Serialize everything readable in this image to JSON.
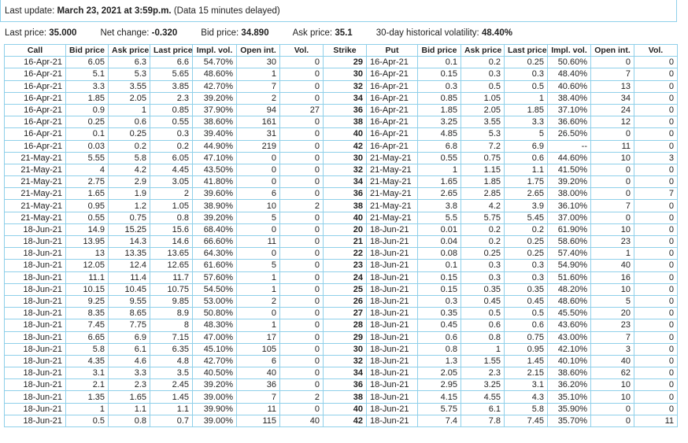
{
  "header": {
    "label": "Last update:",
    "timestamp": "March 23, 2021 at 3:59p.m.",
    "note": "(Data 15 minutes delayed)"
  },
  "quote": [
    {
      "label": "Last price:",
      "value": "35.000"
    },
    {
      "label": "Net change:",
      "value": "-0.320"
    },
    {
      "label": "Bid price:",
      "value": "34.890"
    },
    {
      "label": "Ask price:",
      "value": "35.1"
    },
    {
      "label": "30-day historical volatility:",
      "value": "48.40%"
    }
  ],
  "table": {
    "columns": [
      "Call",
      "Bid price",
      "Ask price",
      "Last price",
      "Impl. vol.",
      "Open int.",
      "Vol.",
      "Strike",
      "Put",
      "Bid price",
      "Ask price",
      "Last price",
      "Impl. vol.",
      "Open int.",
      "Vol."
    ],
    "rows": [
      [
        "16-Apr-21",
        "6.05",
        "6.3",
        "6.6",
        "54.70%",
        "30",
        "0",
        "29",
        "16-Apr-21",
        "0.1",
        "0.2",
        "0.25",
        "50.60%",
        "0",
        "0"
      ],
      [
        "16-Apr-21",
        "5.1",
        "5.3",
        "5.65",
        "48.60%",
        "1",
        "0",
        "30",
        "16-Apr-21",
        "0.15",
        "0.3",
        "0.3",
        "48.40%",
        "7",
        "0"
      ],
      [
        "16-Apr-21",
        "3.3",
        "3.55",
        "3.85",
        "42.70%",
        "7",
        "0",
        "32",
        "16-Apr-21",
        "0.3",
        "0.5",
        "0.5",
        "40.60%",
        "13",
        "0"
      ],
      [
        "16-Apr-21",
        "1.85",
        "2.05",
        "2.3",
        "39.20%",
        "2",
        "0",
        "34",
        "16-Apr-21",
        "0.85",
        "1.05",
        "1",
        "38.40%",
        "34",
        "0"
      ],
      [
        "16-Apr-21",
        "0.9",
        "1",
        "0.85",
        "37.90%",
        "94",
        "27",
        "36",
        "16-Apr-21",
        "1.85",
        "2.05",
        "1.85",
        "37.10%",
        "24",
        "0"
      ],
      [
        "16-Apr-21",
        "0.25",
        "0.6",
        "0.55",
        "38.60%",
        "161",
        "0",
        "38",
        "16-Apr-21",
        "3.25",
        "3.55",
        "3.3",
        "36.60%",
        "12",
        "0"
      ],
      [
        "16-Apr-21",
        "0.1",
        "0.25",
        "0.3",
        "39.40%",
        "31",
        "0",
        "40",
        "16-Apr-21",
        "4.85",
        "5.3",
        "5",
        "26.50%",
        "0",
        "0"
      ],
      [
        "16-Apr-21",
        "0.03",
        "0.2",
        "0.2",
        "44.90%",
        "219",
        "0",
        "42",
        "16-Apr-21",
        "6.8",
        "7.2",
        "6.9",
        "--",
        "11",
        "0"
      ],
      [
        "21-May-21",
        "5.55",
        "5.8",
        "6.05",
        "47.10%",
        "0",
        "0",
        "30",
        "21-May-21",
        "0.55",
        "0.75",
        "0.6",
        "44.60%",
        "10",
        "3"
      ],
      [
        "21-May-21",
        "4",
        "4.2",
        "4.45",
        "43.50%",
        "0",
        "0",
        "32",
        "21-May-21",
        "1",
        "1.15",
        "1.1",
        "41.50%",
        "0",
        "0"
      ],
      [
        "21-May-21",
        "2.75",
        "2.9",
        "3.05",
        "41.80%",
        "0",
        "0",
        "34",
        "21-May-21",
        "1.65",
        "1.85",
        "1.75",
        "39.20%",
        "0",
        "0"
      ],
      [
        "21-May-21",
        "1.65",
        "1.9",
        "2",
        "39.60%",
        "6",
        "0",
        "36",
        "21-May-21",
        "2.65",
        "2.85",
        "2.65",
        "38.00%",
        "0",
        "7"
      ],
      [
        "21-May-21",
        "0.95",
        "1.2",
        "1.05",
        "38.90%",
        "10",
        "2",
        "38",
        "21-May-21",
        "3.8",
        "4.2",
        "3.9",
        "36.10%",
        "7",
        "0"
      ],
      [
        "21-May-21",
        "0.55",
        "0.75",
        "0.8",
        "39.20%",
        "5",
        "0",
        "40",
        "21-May-21",
        "5.5",
        "5.75",
        "5.45",
        "37.00%",
        "0",
        "0"
      ],
      [
        "18-Jun-21",
        "14.9",
        "15.25",
        "15.6",
        "68.40%",
        "0",
        "0",
        "20",
        "18-Jun-21",
        "0.01",
        "0.2",
        "0.2",
        "61.90%",
        "10",
        "0"
      ],
      [
        "18-Jun-21",
        "13.95",
        "14.3",
        "14.6",
        "66.60%",
        "11",
        "0",
        "21",
        "18-Jun-21",
        "0.04",
        "0.2",
        "0.25",
        "58.60%",
        "23",
        "0"
      ],
      [
        "18-Jun-21",
        "13",
        "13.35",
        "13.65",
        "64.30%",
        "0",
        "0",
        "22",
        "18-Jun-21",
        "0.08",
        "0.25",
        "0.25",
        "57.40%",
        "1",
        "0"
      ],
      [
        "18-Jun-21",
        "12.05",
        "12.4",
        "12.65",
        "61.60%",
        "5",
        "0",
        "23",
        "18-Jun-21",
        "0.1",
        "0.3",
        "0.3",
        "54.90%",
        "40",
        "0"
      ],
      [
        "18-Jun-21",
        "11.1",
        "11.4",
        "11.7",
        "57.60%",
        "1",
        "0",
        "24",
        "18-Jun-21",
        "0.15",
        "0.3",
        "0.3",
        "51.60%",
        "16",
        "0"
      ],
      [
        "18-Jun-21",
        "10.15",
        "10.45",
        "10.75",
        "54.50%",
        "1",
        "0",
        "25",
        "18-Jun-21",
        "0.15",
        "0.35",
        "0.35",
        "48.20%",
        "10",
        "0"
      ],
      [
        "18-Jun-21",
        "9.25",
        "9.55",
        "9.85",
        "53.00%",
        "2",
        "0",
        "26",
        "18-Jun-21",
        "0.3",
        "0.45",
        "0.45",
        "48.60%",
        "5",
        "0"
      ],
      [
        "18-Jun-21",
        "8.35",
        "8.65",
        "8.9",
        "50.80%",
        "0",
        "0",
        "27",
        "18-Jun-21",
        "0.35",
        "0.5",
        "0.5",
        "45.50%",
        "20",
        "0"
      ],
      [
        "18-Jun-21",
        "7.45",
        "7.75",
        "8",
        "48.30%",
        "1",
        "0",
        "28",
        "18-Jun-21",
        "0.45",
        "0.6",
        "0.6",
        "43.60%",
        "23",
        "0"
      ],
      [
        "18-Jun-21",
        "6.65",
        "6.9",
        "7.15",
        "47.00%",
        "17",
        "0",
        "29",
        "18-Jun-21",
        "0.6",
        "0.8",
        "0.75",
        "43.00%",
        "7",
        "0"
      ],
      [
        "18-Jun-21",
        "5.8",
        "6.1",
        "6.35",
        "45.10%",
        "105",
        "0",
        "30",
        "18-Jun-21",
        "0.8",
        "1",
        "0.95",
        "42.10%",
        "3",
        "0"
      ],
      [
        "18-Jun-21",
        "4.35",
        "4.6",
        "4.8",
        "42.70%",
        "6",
        "0",
        "32",
        "18-Jun-21",
        "1.3",
        "1.55",
        "1.45",
        "40.10%",
        "40",
        "0"
      ],
      [
        "18-Jun-21",
        "3.1",
        "3.3",
        "3.5",
        "40.50%",
        "40",
        "0",
        "34",
        "18-Jun-21",
        "2.05",
        "2.3",
        "2.15",
        "38.60%",
        "62",
        "0"
      ],
      [
        "18-Jun-21",
        "2.1",
        "2.3",
        "2.45",
        "39.20%",
        "36",
        "0",
        "36",
        "18-Jun-21",
        "2.95",
        "3.25",
        "3.1",
        "36.20%",
        "10",
        "0"
      ],
      [
        "18-Jun-21",
        "1.35",
        "1.65",
        "1.45",
        "39.00%",
        "7",
        "2",
        "38",
        "18-Jun-21",
        "4.15",
        "4.55",
        "4.3",
        "35.10%",
        "10",
        "0"
      ],
      [
        "18-Jun-21",
        "1",
        "1.1",
        "1.1",
        "39.90%",
        "11",
        "0",
        "40",
        "18-Jun-21",
        "5.75",
        "6.1",
        "5.8",
        "35.90%",
        "0",
        "0"
      ],
      [
        "18-Jun-21",
        "0.5",
        "0.8",
        "0.7",
        "39.00%",
        "115",
        "40",
        "42",
        "18-Jun-21",
        "7.4",
        "7.8",
        "7.45",
        "35.70%",
        "0",
        "11"
      ]
    ]
  }
}
